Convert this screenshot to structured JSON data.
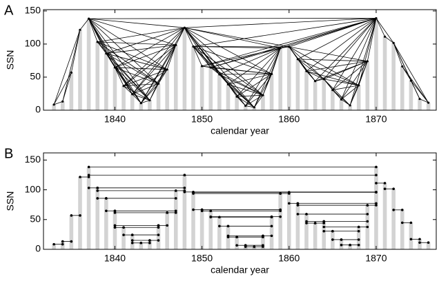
{
  "chart_data": [
    {
      "type": "visibility",
      "panel": "A",
      "xlabel": "calendar year",
      "ylabel": "SSN",
      "bar_color": "#d3d3d3",
      "edge_color": "#000000",
      "x": [
        1833,
        1834,
        1835,
        1836,
        1837,
        1838,
        1839,
        1840,
        1841,
        1842,
        1843,
        1844,
        1845,
        1846,
        1847,
        1848,
        1849,
        1850,
        1851,
        1852,
        1853,
        1854,
        1855,
        1856,
        1857,
        1858,
        1859,
        1860,
        1861,
        1862,
        1863,
        1864,
        1865,
        1866,
        1867,
        1868,
        1869,
        1870,
        1871,
        1872,
        1873,
        1874,
        1875,
        1876
      ],
      "values": [
        8.5,
        13.2,
        56.9,
        121.5,
        138.3,
        103.2,
        85.7,
        64.6,
        36.7,
        24.2,
        10.7,
        15.0,
        40.1,
        61.5,
        98.5,
        124.7,
        96.3,
        66.6,
        64.5,
        54.1,
        39.0,
        20.6,
        6.7,
        4.3,
        22.7,
        54.8,
        93.8,
        95.8,
        77.2,
        59.1,
        44.0,
        47.0,
        30.5,
        16.3,
        7.3,
        37.6,
        74.0,
        139.0,
        111.2,
        101.6,
        66.2,
        44.7,
        17.0,
        11.3
      ],
      "xlim": [
        1831.8,
        1876.9
      ],
      "xticks": [
        1840,
        1850,
        1860,
        1870
      ],
      "ylim": [
        0,
        152
      ],
      "yticks": [
        0,
        50,
        100,
        150
      ]
    },
    {
      "type": "horizontal",
      "panel": "B",
      "xlabel": "calendar year",
      "ylabel": "SSN",
      "bar_color": "#d3d3d3",
      "edge_color": "#000000",
      "x": [
        1833,
        1834,
        1835,
        1836,
        1837,
        1838,
        1839,
        1840,
        1841,
        1842,
        1843,
        1844,
        1845,
        1846,
        1847,
        1848,
        1849,
        1850,
        1851,
        1852,
        1853,
        1854,
        1855,
        1856,
        1857,
        1858,
        1859,
        1860,
        1861,
        1862,
        1863,
        1864,
        1865,
        1866,
        1867,
        1868,
        1869,
        1870,
        1871,
        1872,
        1873,
        1874,
        1875,
        1876
      ],
      "values": [
        8.5,
        13.2,
        56.9,
        121.5,
        138.3,
        103.2,
        85.7,
        64.6,
        36.7,
        24.2,
        10.7,
        15.0,
        40.1,
        61.5,
        98.5,
        124.7,
        96.3,
        66.6,
        64.5,
        54.1,
        39.0,
        20.6,
        6.7,
        4.3,
        22.7,
        54.8,
        93.8,
        95.8,
        77.2,
        59.1,
        44.0,
        47.0,
        30.5,
        16.3,
        7.3,
        37.6,
        74.0,
        139.0,
        111.2,
        101.6,
        66.2,
        44.7,
        17.0,
        11.3
      ],
      "xlim": [
        1831.8,
        1876.9
      ],
      "xticks": [
        1840,
        1850,
        1860,
        1870
      ],
      "ylim": [
        0,
        162
      ],
      "yticks": [
        0,
        50,
        100,
        150
      ]
    }
  ]
}
